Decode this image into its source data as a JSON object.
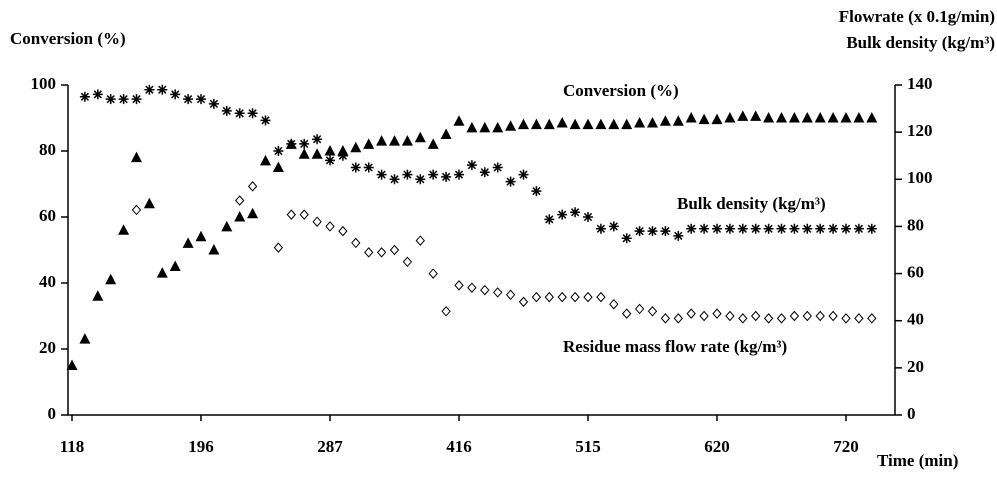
{
  "chart_data": {
    "type": "scatter",
    "y_label": "Conversion (%)",
    "y2_label": [
      "Flowrate (x 0.1g/min)",
      "Bulk density (kg/m³)"
    ],
    "x_label": "Time (min)",
    "categories": [
      "118",
      null,
      null,
      null,
      null,
      null,
      null,
      null,
      null,
      null,
      "196",
      null,
      null,
      null,
      null,
      null,
      null,
      null,
      null,
      null,
      "287",
      null,
      null,
      null,
      null,
      null,
      null,
      null,
      null,
      null,
      "416",
      null,
      null,
      null,
      null,
      null,
      null,
      null,
      null,
      null,
      "515",
      null,
      null,
      null,
      null,
      null,
      null,
      null,
      null,
      null,
      "620",
      null,
      null,
      null,
      null,
      null,
      null,
      null,
      null,
      null,
      "720",
      null,
      null
    ],
    "ylim": [
      0,
      100
    ],
    "yticks": [
      0,
      20,
      40,
      60,
      80,
      100
    ],
    "y2lim": [
      0,
      140
    ],
    "y2ticks": [
      0,
      20,
      40,
      60,
      80,
      100,
      120,
      140
    ],
    "series": [
      {
        "name": "Conversion (%)",
        "marker": "triangle",
        "color": "#000000",
        "values": [
          15,
          23,
          36,
          41,
          56,
          78,
          64,
          43,
          45,
          52,
          54,
          50,
          57,
          60,
          61,
          77,
          75,
          82,
          79,
          79,
          80,
          80,
          81,
          82,
          83,
          83,
          83,
          84,
          82,
          85,
          89,
          87,
          87,
          87,
          87.5,
          88,
          88,
          88,
          88.5,
          88,
          88,
          88,
          88,
          88,
          88.5,
          88.5,
          89,
          89,
          90,
          89.5,
          89.5,
          90,
          90.5,
          90.5,
          90,
          90,
          90,
          90,
          90,
          90,
          90,
          90,
          90
        ]
      },
      {
        "name": "Bulk density (kg/m³)",
        "marker": "star",
        "color": "#000000",
        "axis": "y2",
        "values": [
          null,
          135,
          136,
          134,
          134,
          134,
          138,
          138,
          136,
          134,
          134,
          132,
          129,
          128,
          128,
          125,
          112,
          115,
          115,
          117,
          108,
          110,
          105,
          105,
          102,
          100,
          102,
          100,
          102,
          101,
          102,
          106,
          103,
          105,
          99,
          102,
          95,
          83,
          85,
          86,
          84,
          79,
          80,
          75,
          78,
          78,
          78,
          76,
          79,
          79,
          79,
          79,
          79,
          79,
          79,
          79,
          79,
          79,
          79,
          79,
          79,
          79,
          79
        ]
      },
      {
        "name": "Residue mass flow rate (kg/m³)",
        "marker": "diamond",
        "color": "#000000",
        "axis": "y2",
        "values": [
          null,
          null,
          null,
          null,
          null,
          87,
          null,
          null,
          null,
          null,
          null,
          null,
          null,
          91,
          97,
          null,
          71,
          85,
          85,
          82,
          80,
          78,
          73,
          69,
          69,
          70,
          65,
          74,
          60,
          44,
          55,
          54,
          53,
          52,
          51,
          48,
          50,
          50,
          50,
          50,
          50,
          50,
          47,
          43,
          45,
          44,
          41,
          41,
          43,
          42,
          43,
          42,
          41,
          42,
          41,
          41,
          42,
          42,
          42,
          42,
          41,
          41,
          41
        ]
      }
    ]
  }
}
